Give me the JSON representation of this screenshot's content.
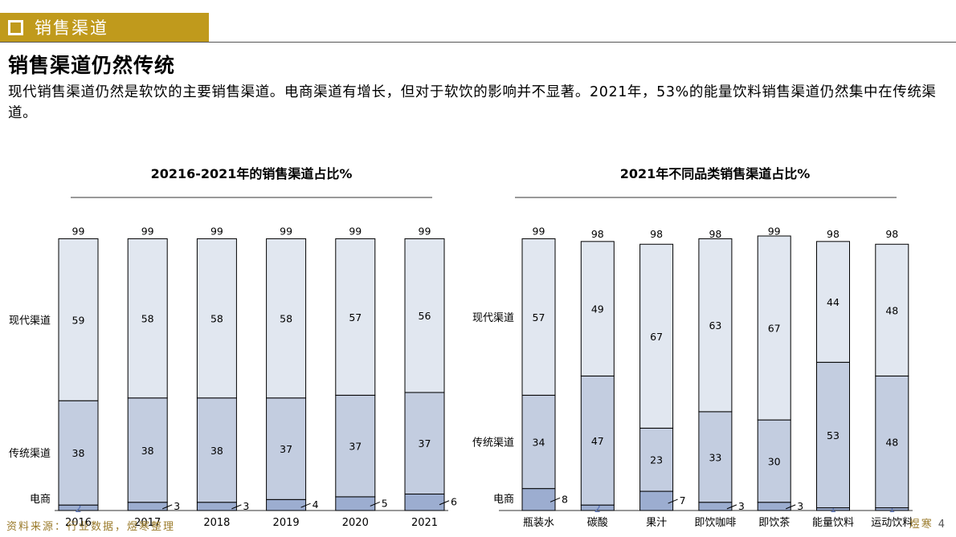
{
  "header": {
    "section_label": "销售渠道",
    "title": "销售渠道仍然传统",
    "description": "现代销售渠道仍然是软饮的主要销售渠道。电商渠道有增长，但对于软饮的影响并不显著。2021年，53%的能量饮料销售渠道仍然集中在传统渠道。"
  },
  "footer": {
    "source": "资料来源：行业数据，煜寒整理",
    "brand": "煜寒",
    "page": "4"
  },
  "colors": {
    "accent": "#c09a1c",
    "modern": "#e1e7f0",
    "traditional": "#c3cde0",
    "ecommerce": "#9cadd0"
  },
  "chart_data": [
    {
      "type": "bar",
      "stacked": true,
      "title": "20216-2021年的销售渠道占比%",
      "categories": [
        "2016",
        "2017",
        "2018",
        "2019",
        "2020",
        "2021"
      ],
      "series": [
        {
          "name": "电商",
          "values": [
            2,
            3,
            3,
            4,
            5,
            6
          ]
        },
        {
          "name": "传统渠道",
          "values": [
            38,
            38,
            38,
            37,
            37,
            37
          ]
        },
        {
          "name": "现代渠道",
          "values": [
            59,
            58,
            58,
            58,
            57,
            56
          ]
        }
      ],
      "totals": [
        99,
        99,
        99,
        99,
        99,
        99
      ],
      "ylim": [
        0,
        99
      ]
    },
    {
      "type": "bar",
      "stacked": true,
      "title": "2021年不同品类销售渠道占比%",
      "categories": [
        "瓶装水",
        "碳酸",
        "果汁",
        "即饮咖啡",
        "即饮茶",
        "能量饮料",
        "运动饮料"
      ],
      "series": [
        {
          "name": "电商",
          "values": [
            8,
            2,
            7,
            3,
            3,
            1,
            1
          ]
        },
        {
          "name": "传统渠道",
          "values": [
            34,
            47,
            23,
            33,
            30,
            53,
            48
          ]
        },
        {
          "name": "现代渠道",
          "values": [
            57,
            49,
            67,
            63,
            67,
            44,
            48
          ]
        }
      ],
      "totals": [
        99,
        98,
        98,
        98,
        99,
        98,
        98
      ],
      "ylim": [
        0,
        99
      ]
    }
  ]
}
